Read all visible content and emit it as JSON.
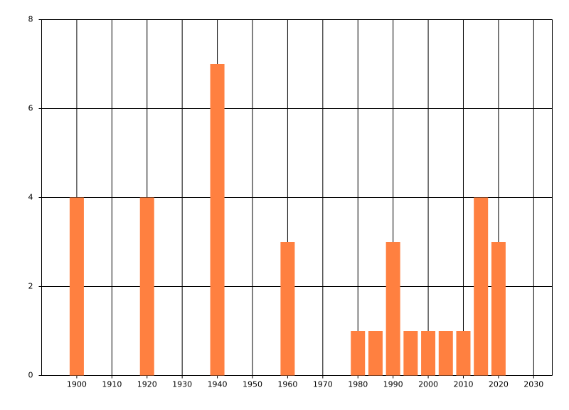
{
  "chart_data": {
    "type": "bar",
    "x": [
      1900,
      1920,
      1940,
      1960,
      1980,
      1985,
      1990,
      1995,
      2000,
      2005,
      2010,
      2015,
      2020
    ],
    "values": [
      4,
      4,
      7,
      3,
      1,
      1,
      3,
      1,
      1,
      1,
      1,
      4,
      3
    ],
    "color": "#ff8040",
    "xlim": [
      1890,
      2035.3
    ],
    "xticks": [
      1900,
      1910,
      1920,
      1930,
      1940,
      1950,
      1960,
      1970,
      1980,
      1990,
      2000,
      2010,
      2020,
      2030
    ],
    "ylim": [
      0,
      8
    ],
    "yticks": [
      0,
      2,
      4,
      6,
      8
    ],
    "grid": true
  }
}
